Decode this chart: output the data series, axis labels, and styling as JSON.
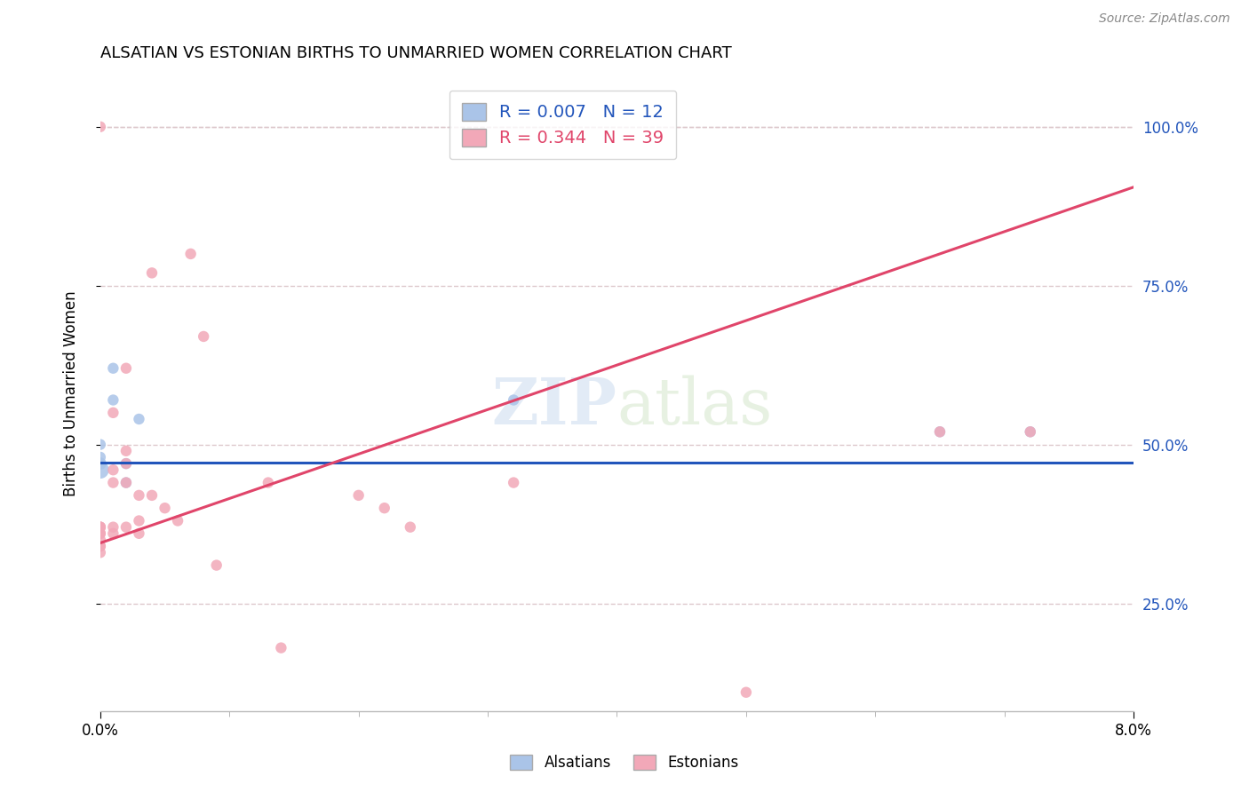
{
  "title": "ALSATIAN VS ESTONIAN BIRTHS TO UNMARRIED WOMEN CORRELATION CHART",
  "source": "Source: ZipAtlas.com",
  "xlabel_label": "Alsatians",
  "xlabel2_label": "Estonians",
  "ylabel_label": "Births to Unmarried Women",
  "xlim": [
    0.0,
    0.08
  ],
  "ylim": [
    0.08,
    1.08
  ],
  "yticks": [
    0.25,
    0.5,
    0.75,
    1.0
  ],
  "yticklabels": [
    "25.0%",
    "50.0%",
    "75.0%",
    "100.0%"
  ],
  "blue_R": 0.007,
  "blue_N": 12,
  "pink_R": 0.344,
  "pink_N": 39,
  "blue_color": "#aac4e8",
  "pink_color": "#f2a8b8",
  "blue_line_color": "#2255bb",
  "pink_line_color": "#e0456a",
  "grid_color": "#ddc8cc",
  "blue_line_y0": 0.472,
  "blue_line_y1": 0.472,
  "pink_line_y0": 0.345,
  "pink_line_y1": 0.905,
  "alsatian_x": [
    0.0,
    0.0,
    0.0,
    0.0,
    0.001,
    0.001,
    0.002,
    0.002,
    0.003,
    0.032,
    0.065,
    0.072
  ],
  "alsatian_y": [
    0.46,
    0.47,
    0.48,
    0.5,
    0.57,
    0.62,
    0.44,
    0.47,
    0.54,
    0.57,
    0.52,
    0.52
  ],
  "alsatian_sizes": [
    200,
    100,
    80,
    80,
    80,
    80,
    80,
    80,
    80,
    80,
    80,
    80
  ],
  "estonian_x": [
    0.0,
    0.0,
    0.0,
    0.0,
    0.0,
    0.0,
    0.0,
    0.0,
    0.0,
    0.0,
    0.001,
    0.001,
    0.001,
    0.001,
    0.001,
    0.002,
    0.002,
    0.002,
    0.002,
    0.002,
    0.003,
    0.003,
    0.003,
    0.004,
    0.004,
    0.005,
    0.006,
    0.007,
    0.008,
    0.009,
    0.013,
    0.014,
    0.02,
    0.022,
    0.024,
    0.032,
    0.05,
    0.065,
    0.072
  ],
  "estonian_y": [
    0.33,
    0.34,
    0.34,
    0.35,
    0.36,
    0.36,
    0.37,
    0.37,
    0.37,
    1.0,
    0.36,
    0.37,
    0.44,
    0.46,
    0.55,
    0.37,
    0.44,
    0.47,
    0.49,
    0.62,
    0.36,
    0.38,
    0.42,
    0.42,
    0.77,
    0.4,
    0.38,
    0.8,
    0.67,
    0.31,
    0.44,
    0.18,
    0.42,
    0.4,
    0.37,
    0.44,
    0.11,
    0.52,
    0.52
  ],
  "estonian_sizes": [
    80,
    80,
    80,
    80,
    80,
    80,
    80,
    80,
    80,
    80,
    80,
    80,
    80,
    80,
    80,
    80,
    80,
    80,
    80,
    80,
    80,
    80,
    80,
    80,
    80,
    80,
    80,
    80,
    80,
    80,
    80,
    80,
    80,
    80,
    80,
    80,
    80,
    80,
    80
  ]
}
